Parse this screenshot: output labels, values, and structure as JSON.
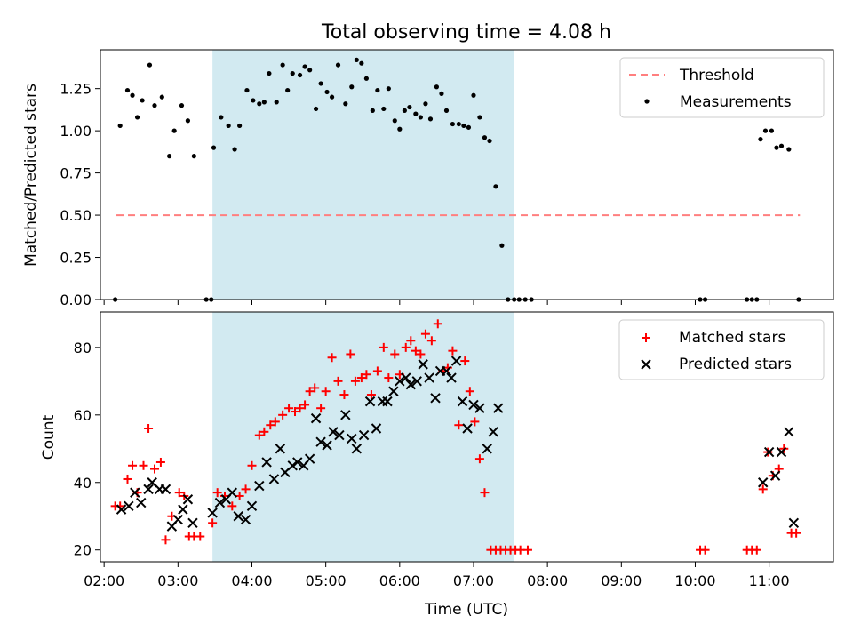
{
  "title": "Total observing time = 4.08 h",
  "colors": {
    "span": "#add8e6",
    "threshold": "#ff7f7f",
    "measurements": "#000000",
    "matched": "#ff0000",
    "predicted": "#000000"
  },
  "chart_data": [
    {
      "type": "scatter",
      "ylabel": "Matched/Predicted stars",
      "ylim": [
        0,
        1.48
      ],
      "yticks": [
        "0.00",
        "0.25",
        "0.50",
        "0.75",
        "1.00",
        "1.25"
      ],
      "xlim_hours": [
        1.95,
        11.87
      ],
      "shaded_span": [
        "03:28",
        "07:33"
      ],
      "legend": {
        "position": "top-right",
        "entries": [
          "Threshold",
          "Measurements"
        ]
      },
      "threshold": {
        "name": "Threshold",
        "y": 0.5,
        "x_start": "02:10",
        "x_end": "11:25"
      },
      "series": [
        {
          "name": "Measurements",
          "points": [
            [
              "02:09",
              0.0
            ],
            [
              "02:13",
              1.03
            ],
            [
              "02:19",
              1.24
            ],
            [
              "02:23",
              1.21
            ],
            [
              "02:27",
              1.08
            ],
            [
              "02:31",
              1.18
            ],
            [
              "02:37",
              1.39
            ],
            [
              "02:41",
              1.15
            ],
            [
              "02:47",
              1.2
            ],
            [
              "02:53",
              0.85
            ],
            [
              "02:57",
              1.0
            ],
            [
              "03:03",
              1.15
            ],
            [
              "03:08",
              1.06
            ],
            [
              "03:13",
              0.85
            ],
            [
              "03:23",
              0.0
            ],
            [
              "03:27",
              0.0
            ],
            [
              "03:29",
              0.9
            ],
            [
              "03:35",
              1.08
            ],
            [
              "03:41",
              1.03
            ],
            [
              "03:46",
              0.89
            ],
            [
              "03:50",
              1.03
            ],
            [
              "03:56",
              1.24
            ],
            [
              "04:01",
              1.18
            ],
            [
              "04:06",
              1.16
            ],
            [
              "04:10",
              1.17
            ],
            [
              "04:14",
              1.34
            ],
            [
              "04:20",
              1.17
            ],
            [
              "04:25",
              1.39
            ],
            [
              "04:29",
              1.24
            ],
            [
              "04:33",
              1.34
            ],
            [
              "04:39",
              1.33
            ],
            [
              "04:43",
              1.38
            ],
            [
              "04:47",
              1.36
            ],
            [
              "04:52",
              1.13
            ],
            [
              "04:56",
              1.28
            ],
            [
              "05:01",
              1.23
            ],
            [
              "05:05",
              1.2
            ],
            [
              "05:10",
              1.39
            ],
            [
              "05:16",
              1.16
            ],
            [
              "05:21",
              1.26
            ],
            [
              "05:25",
              1.42
            ],
            [
              "05:29",
              1.4
            ],
            [
              "05:33",
              1.31
            ],
            [
              "05:38",
              1.12
            ],
            [
              "05:42",
              1.24
            ],
            [
              "05:47",
              1.13
            ],
            [
              "05:51",
              1.25
            ],
            [
              "05:56",
              1.06
            ],
            [
              "06:00",
              1.01
            ],
            [
              "06:04",
              1.12
            ],
            [
              "06:08",
              1.14
            ],
            [
              "06:13",
              1.1
            ],
            [
              "06:17",
              1.08
            ],
            [
              "06:21",
              1.16
            ],
            [
              "06:25",
              1.07
            ],
            [
              "06:30",
              1.26
            ],
            [
              "06:34",
              1.22
            ],
            [
              "06:38",
              1.12
            ],
            [
              "06:43",
              1.04
            ],
            [
              "06:48",
              1.04
            ],
            [
              "06:52",
              1.03
            ],
            [
              "06:56",
              1.02
            ],
            [
              "07:00",
              1.21
            ],
            [
              "07:05",
              1.08
            ],
            [
              "07:09",
              0.96
            ],
            [
              "07:13",
              0.94
            ],
            [
              "07:18",
              0.67
            ],
            [
              "07:23",
              0.32
            ],
            [
              "07:28",
              0.0
            ],
            [
              "07:33",
              0.0
            ],
            [
              "07:37",
              0.0
            ],
            [
              "07:42",
              0.0
            ],
            [
              "07:47",
              0.0
            ],
            [
              "10:04",
              0.0
            ],
            [
              "10:08",
              0.0
            ],
            [
              "10:42",
              0.0
            ],
            [
              "10:46",
              0.0
            ],
            [
              "10:50",
              0.0
            ],
            [
              "10:53",
              0.95
            ],
            [
              "10:57",
              1.0
            ],
            [
              "11:02",
              1.0
            ],
            [
              "11:06",
              0.9
            ],
            [
              "11:10",
              0.91
            ],
            [
              "11:16",
              0.89
            ],
            [
              "11:24",
              0.0
            ]
          ]
        }
      ]
    },
    {
      "type": "scatter",
      "xlabel": "Time (UTC)",
      "ylabel": "Count",
      "ylim": [
        16.5,
        90.5
      ],
      "yticks": [
        "20",
        "40",
        "60",
        "80"
      ],
      "xticks": [
        "02:00",
        "03:00",
        "04:00",
        "05:00",
        "06:00",
        "07:00",
        "08:00",
        "09:00",
        "10:00",
        "11:00"
      ],
      "xlim_hours": [
        1.95,
        11.87
      ],
      "shaded_span": [
        "03:28",
        "07:33"
      ],
      "legend": {
        "position": "top-right",
        "entries": [
          "Matched stars",
          "Predicted stars"
        ]
      },
      "series": [
        {
          "name": "Matched stars",
          "marker": "+",
          "points": [
            [
              "02:09",
              33
            ],
            [
              "02:13",
              33
            ],
            [
              "02:19",
              41
            ],
            [
              "02:23",
              45
            ],
            [
              "02:27",
              37
            ],
            [
              "02:32",
              45
            ],
            [
              "02:36",
              56
            ],
            [
              "02:41",
              44
            ],
            [
              "02:46",
              46
            ],
            [
              "02:50",
              23
            ],
            [
              "02:55",
              30
            ],
            [
              "03:01",
              37
            ],
            [
              "03:05",
              36
            ],
            [
              "03:09",
              24
            ],
            [
              "03:13",
              24
            ],
            [
              "03:18",
              24
            ],
            [
              "03:28",
              28
            ],
            [
              "03:32",
              37
            ],
            [
              "03:38",
              36
            ],
            [
              "03:44",
              33
            ],
            [
              "03:50",
              36
            ],
            [
              "03:55",
              38
            ],
            [
              "04:00",
              45
            ],
            [
              "04:06",
              54
            ],
            [
              "04:10",
              55
            ],
            [
              "04:15",
              57
            ],
            [
              "04:19",
              58
            ],
            [
              "04:25",
              60
            ],
            [
              "04:30",
              62
            ],
            [
              "04:35",
              61
            ],
            [
              "04:39",
              62
            ],
            [
              "04:43",
              63
            ],
            [
              "04:47",
              67
            ],
            [
              "04:51",
              68
            ],
            [
              "04:56",
              62
            ],
            [
              "05:00",
              67
            ],
            [
              "05:05",
              77
            ],
            [
              "05:10",
              70
            ],
            [
              "05:15",
              66
            ],
            [
              "05:20",
              78
            ],
            [
              "05:24",
              70
            ],
            [
              "05:29",
              71
            ],
            [
              "05:33",
              72
            ],
            [
              "05:37",
              66
            ],
            [
              "05:42",
              73
            ],
            [
              "05:47",
              80
            ],
            [
              "05:51",
              71
            ],
            [
              "05:56",
              78
            ],
            [
              "06:00",
              72
            ],
            [
              "06:05",
              80
            ],
            [
              "06:09",
              82
            ],
            [
              "06:13",
              79
            ],
            [
              "06:17",
              78
            ],
            [
              "06:21",
              84
            ],
            [
              "06:26",
              82
            ],
            [
              "06:31",
              87
            ],
            [
              "06:35",
              73
            ],
            [
              "06:39",
              74
            ],
            [
              "06:43",
              79
            ],
            [
              "06:48",
              57
            ],
            [
              "06:53",
              76
            ],
            [
              "06:57",
              67
            ],
            [
              "07:01",
              58
            ],
            [
              "07:05",
              47
            ],
            [
              "07:09",
              37
            ],
            [
              "07:14",
              20
            ],
            [
              "07:18",
              20
            ],
            [
              "07:22",
              20
            ],
            [
              "07:26",
              20
            ],
            [
              "07:30",
              20
            ],
            [
              "07:34",
              20
            ],
            [
              "07:38",
              20
            ],
            [
              "07:44",
              20
            ],
            [
              "10:04",
              20
            ],
            [
              "10:08",
              20
            ],
            [
              "10:42",
              20
            ],
            [
              "10:46",
              20
            ],
            [
              "10:50",
              20
            ],
            [
              "10:55",
              38
            ],
            [
              "10:59",
              49
            ],
            [
              "11:03",
              42
            ],
            [
              "11:08",
              44
            ],
            [
              "11:12",
              50
            ],
            [
              "11:18",
              25
            ],
            [
              "11:22",
              25
            ]
          ]
        },
        {
          "name": "Predicted stars",
          "marker": "x",
          "points": [
            [
              "02:14",
              32
            ],
            [
              "02:20",
              33
            ],
            [
              "02:25",
              37
            ],
            [
              "02:30",
              34
            ],
            [
              "02:36",
              38
            ],
            [
              "02:39",
              40
            ],
            [
              "02:45",
              38
            ],
            [
              "02:50",
              38
            ],
            [
              "02:55",
              27
            ],
            [
              "03:00",
              29
            ],
            [
              "03:04",
              32
            ],
            [
              "03:08",
              35
            ],
            [
              "03:12",
              28
            ],
            [
              "03:28",
              31
            ],
            [
              "03:34",
              34
            ],
            [
              "03:39",
              35
            ],
            [
              "03:44",
              37
            ],
            [
              "03:49",
              30
            ],
            [
              "03:55",
              29
            ],
            [
              "04:00",
              33
            ],
            [
              "04:06",
              39
            ],
            [
              "04:12",
              46
            ],
            [
              "04:18",
              41
            ],
            [
              "04:23",
              50
            ],
            [
              "04:27",
              43
            ],
            [
              "04:33",
              45
            ],
            [
              "04:37",
              46
            ],
            [
              "04:42",
              45
            ],
            [
              "04:47",
              47
            ],
            [
              "04:52",
              59
            ],
            [
              "04:56",
              52
            ],
            [
              "05:01",
              51
            ],
            [
              "05:06",
              55
            ],
            [
              "05:11",
              54
            ],
            [
              "05:16",
              60
            ],
            [
              "05:21",
              53
            ],
            [
              "05:25",
              50
            ],
            [
              "05:31",
              54
            ],
            [
              "05:36",
              64
            ],
            [
              "05:41",
              56
            ],
            [
              "05:46",
              64
            ],
            [
              "05:50",
              64
            ],
            [
              "05:55",
              67
            ],
            [
              "06:00",
              70
            ],
            [
              "06:05",
              71
            ],
            [
              "06:09",
              69
            ],
            [
              "06:14",
              70
            ],
            [
              "06:19",
              75
            ],
            [
              "06:24",
              71
            ],
            [
              "06:29",
              65
            ],
            [
              "06:33",
              73
            ],
            [
              "06:38",
              73
            ],
            [
              "06:42",
              71
            ],
            [
              "06:46",
              76
            ],
            [
              "06:51",
              64
            ],
            [
              "06:55",
              56
            ],
            [
              "07:00",
              63
            ],
            [
              "07:05",
              62
            ],
            [
              "07:11",
              50
            ],
            [
              "07:16",
              55
            ],
            [
              "07:20",
              62
            ],
            [
              "10:55",
              40
            ],
            [
              "11:00",
              49
            ],
            [
              "11:05",
              42
            ],
            [
              "11:10",
              49
            ],
            [
              "11:16",
              55
            ],
            [
              "11:20",
              28
            ]
          ]
        }
      ]
    }
  ]
}
